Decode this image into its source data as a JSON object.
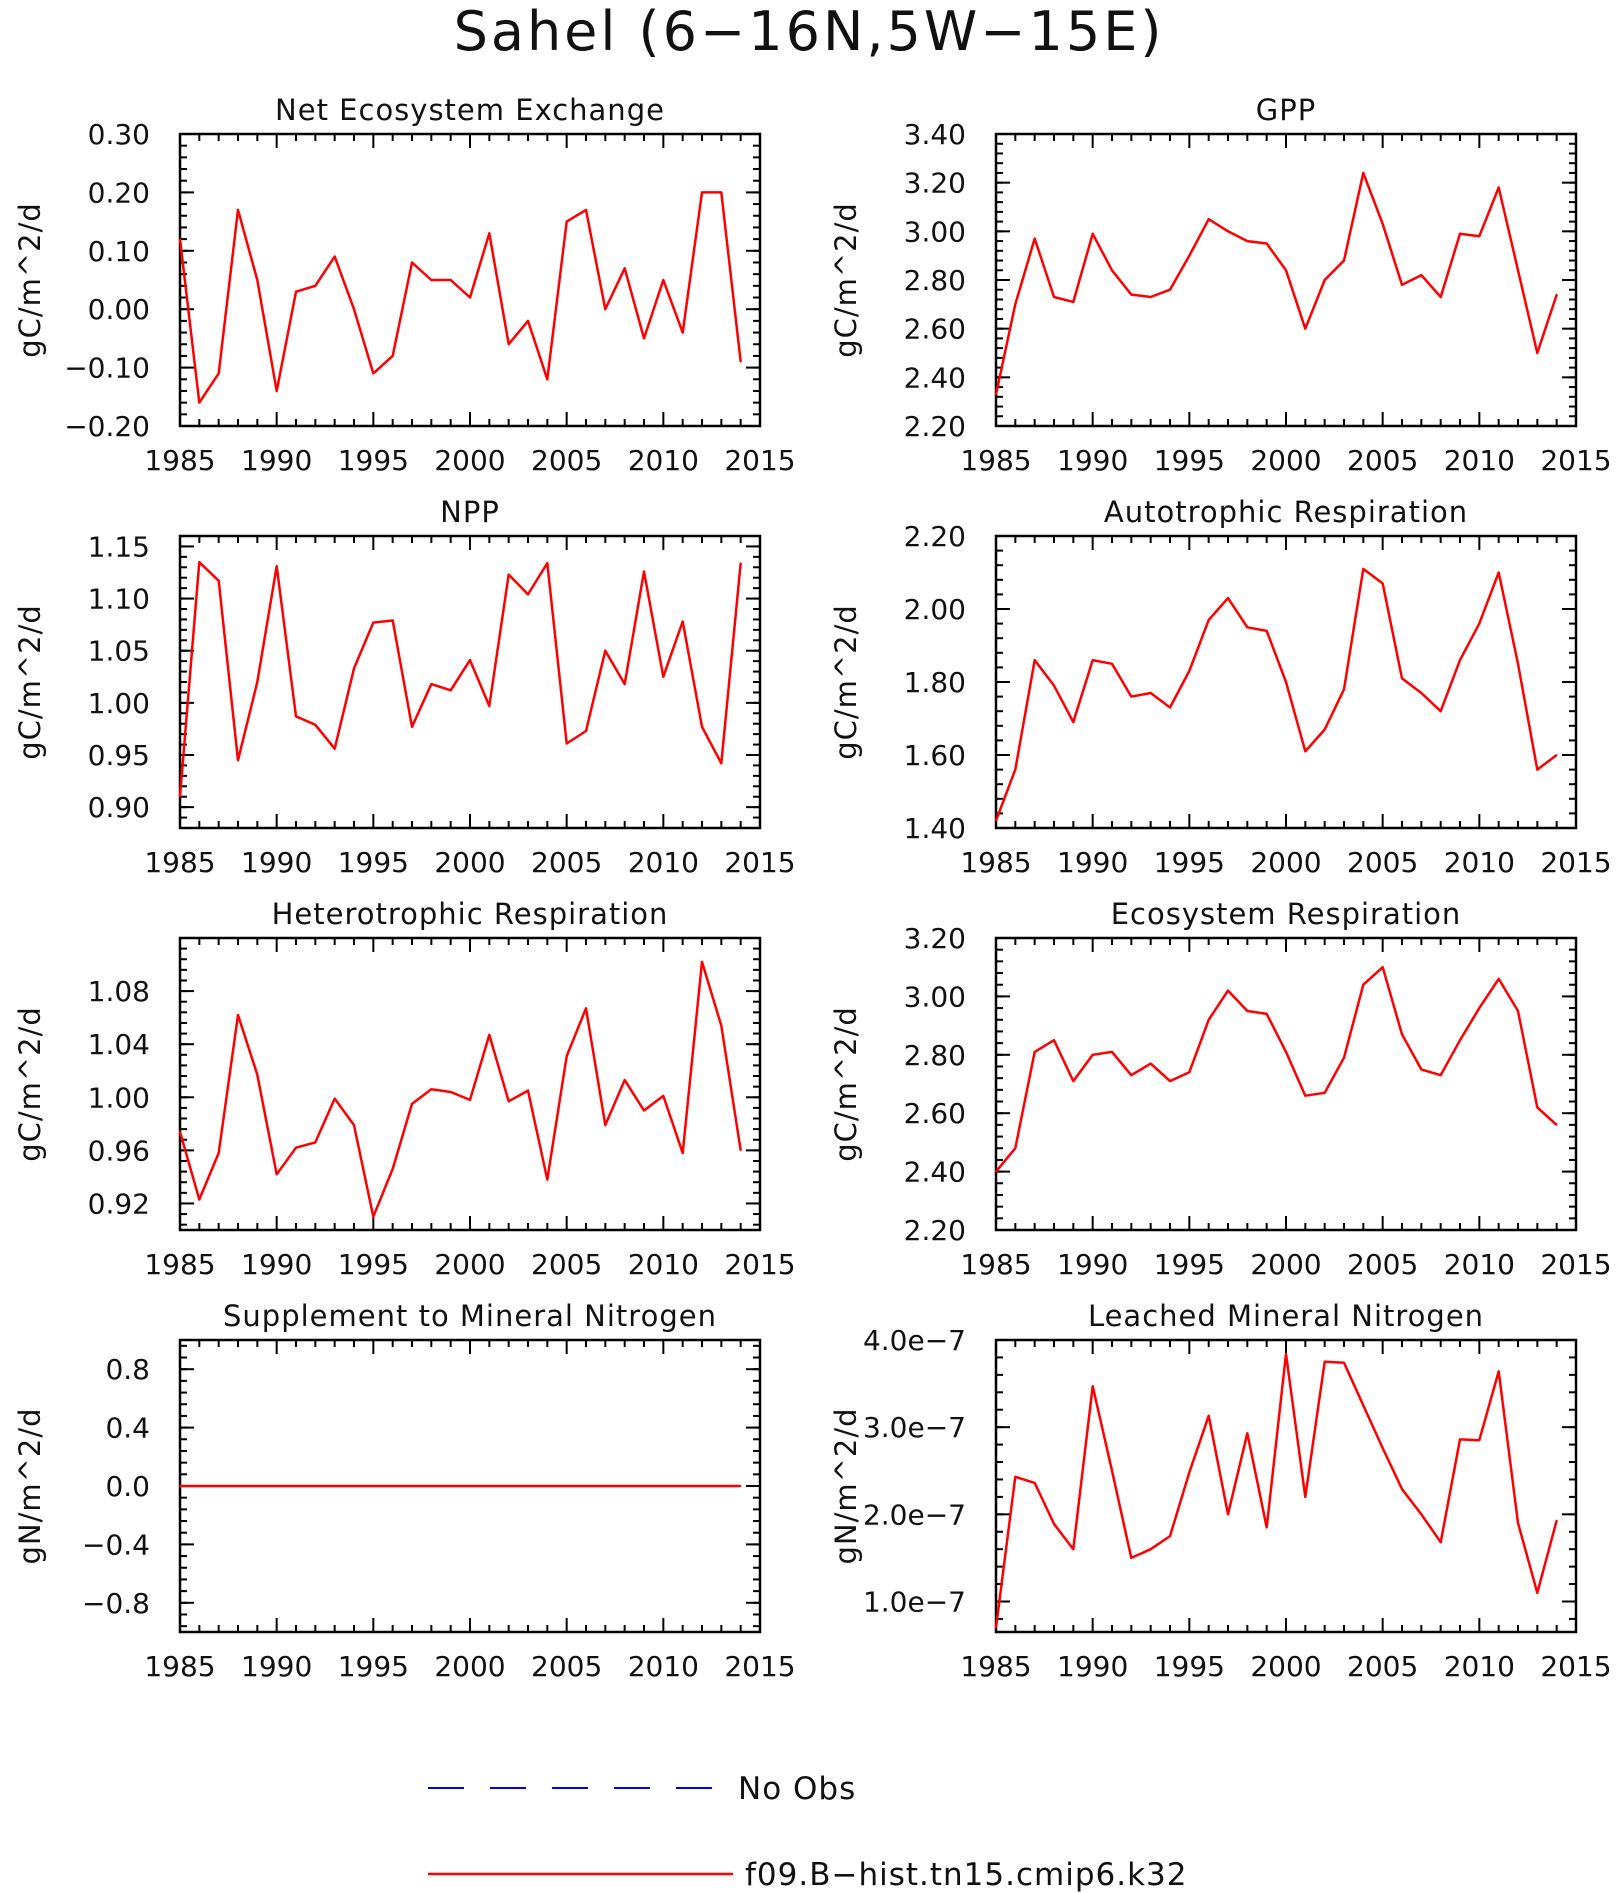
{
  "title": "Sahel (6−16N,5W−15E)",
  "colors": {
    "model": "#ff0000",
    "obs": "#0000ff",
    "axis": "#000000"
  },
  "legend": [
    {
      "label": "No Obs",
      "style": "dashed",
      "color": "#0000ff"
    },
    {
      "label": "f09.B−hist.tn15.cmip6.k32",
      "style": "solid",
      "color": "#ff0000"
    }
  ],
  "chart_data": [
    {
      "type": "line",
      "title": "Net Ecosystem Exchange",
      "ylabel": "gC/m^2/d",
      "xlim": [
        1985,
        2015
      ],
      "ylim": [
        -0.2,
        0.3
      ],
      "xticks": [
        1985,
        1990,
        1995,
        2000,
        2005,
        2010,
        2015
      ],
      "yticks": [
        -0.2,
        -0.1,
        0.0,
        0.1,
        0.2,
        0.3
      ],
      "ytick_labels": [
        "−0.20",
        "−0.10",
        "0.00",
        "0.10",
        "0.20",
        "0.30"
      ],
      "x": [
        1985,
        1986,
        1987,
        1988,
        1989,
        1990,
        1991,
        1992,
        1993,
        1994,
        1995,
        1996,
        1997,
        1998,
        1999,
        2000,
        2001,
        2002,
        2003,
        2004,
        2005,
        2006,
        2007,
        2008,
        2009,
        2010,
        2011,
        2012,
        2013,
        2014
      ],
      "series": [
        {
          "values": [
            0.12,
            -0.16,
            -0.11,
            0.17,
            0.05,
            -0.14,
            0.03,
            0.04,
            0.09,
            0.0,
            -0.11,
            -0.08,
            0.08,
            0.05,
            0.05,
            0.02,
            0.13,
            -0.06,
            -0.02,
            -0.12,
            0.15,
            0.17,
            0.0,
            0.07,
            -0.05,
            0.05,
            -0.04,
            0.2,
            0.2,
            -0.09
          ]
        }
      ]
    },
    {
      "type": "line",
      "title": "GPP",
      "ylabel": "gC/m^2/d",
      "xlim": [
        1985,
        2015
      ],
      "ylim": [
        2.2,
        3.4
      ],
      "xticks": [
        1985,
        1990,
        1995,
        2000,
        2005,
        2010,
        2015
      ],
      "yticks": [
        2.2,
        2.4,
        2.6,
        2.8,
        3.0,
        3.2,
        3.4
      ],
      "ytick_labels": [
        "2.20",
        "2.40",
        "2.60",
        "2.80",
        "3.00",
        "3.20",
        "3.40"
      ],
      "x": [
        1985,
        1986,
        1987,
        1988,
        1989,
        1990,
        1991,
        1992,
        1993,
        1994,
        1995,
        1996,
        1997,
        1998,
        1999,
        2000,
        2001,
        2002,
        2003,
        2004,
        2005,
        2006,
        2007,
        2008,
        2009,
        2010,
        2011,
        2012,
        2013,
        2014
      ],
      "series": [
        {
          "values": [
            2.33,
            2.7,
            2.97,
            2.73,
            2.71,
            2.99,
            2.84,
            2.74,
            2.73,
            2.76,
            2.9,
            3.05,
            3.0,
            2.96,
            2.95,
            2.84,
            2.6,
            2.8,
            2.88,
            3.24,
            3.03,
            2.78,
            2.82,
            2.73,
            2.99,
            2.98,
            3.18,
            2.84,
            2.5,
            2.74
          ]
        }
      ]
    },
    {
      "type": "line",
      "title": "NPP",
      "ylabel": "gC/m^2/d",
      "xlim": [
        1985,
        2015
      ],
      "ylim": [
        0.88,
        1.16
      ],
      "xticks": [
        1985,
        1990,
        1995,
        2000,
        2005,
        2010,
        2015
      ],
      "yticks": [
        0.9,
        0.95,
        1.0,
        1.05,
        1.1,
        1.15
      ],
      "ytick_labels": [
        "0.90",
        "0.95",
        "1.00",
        "1.05",
        "1.10",
        "1.15"
      ],
      "x": [
        1985,
        1986,
        1987,
        1988,
        1989,
        1990,
        1991,
        1992,
        1993,
        1994,
        1995,
        1996,
        1997,
        1998,
        1999,
        2000,
        2001,
        2002,
        2003,
        2004,
        2005,
        2006,
        2007,
        2008,
        2009,
        2010,
        2011,
        2012,
        2013,
        2014
      ],
      "series": [
        {
          "values": [
            0.91,
            1.135,
            1.117,
            0.945,
            1.02,
            1.131,
            0.987,
            0.979,
            0.956,
            1.033,
            1.077,
            1.079,
            0.977,
            1.018,
            1.012,
            1.041,
            0.997,
            1.123,
            1.104,
            1.134,
            0.961,
            0.973,
            1.05,
            1.018,
            1.126,
            1.025,
            1.078,
            0.977,
            0.942,
            1.134
          ]
        }
      ]
    },
    {
      "type": "line",
      "title": "Autotrophic Respiration",
      "ylabel": "gC/m^2/d",
      "xlim": [
        1985,
        2015
      ],
      "ylim": [
        1.4,
        2.2
      ],
      "xticks": [
        1985,
        1990,
        1995,
        2000,
        2005,
        2010,
        2015
      ],
      "yticks": [
        1.4,
        1.6,
        1.8,
        2.0,
        2.2
      ],
      "ytick_labels": [
        "1.40",
        "1.60",
        "1.80",
        "2.00",
        "2.20"
      ],
      "x": [
        1985,
        1986,
        1987,
        1988,
        1989,
        1990,
        1991,
        1992,
        1993,
        1994,
        1995,
        1996,
        1997,
        1998,
        1999,
        2000,
        2001,
        2002,
        2003,
        2004,
        2005,
        2006,
        2007,
        2008,
        2009,
        2010,
        2011,
        2012,
        2013,
        2014
      ],
      "series": [
        {
          "values": [
            1.42,
            1.56,
            1.86,
            1.79,
            1.69,
            1.86,
            1.85,
            1.76,
            1.77,
            1.73,
            1.83,
            1.97,
            2.03,
            1.95,
            1.94,
            1.8,
            1.61,
            1.67,
            1.78,
            2.11,
            2.07,
            1.81,
            1.77,
            1.72,
            1.86,
            1.96,
            2.1,
            1.85,
            1.56,
            1.6
          ]
        }
      ]
    },
    {
      "type": "line",
      "title": "Heterotrophic Respiration",
      "ylabel": "gC/m^2/d",
      "xlim": [
        1985,
        2015
      ],
      "ylim": [
        0.9,
        1.12
      ],
      "xticks": [
        1985,
        1990,
        1995,
        2000,
        2005,
        2010,
        2015
      ],
      "yticks": [
        0.92,
        0.96,
        1.0,
        1.04,
        1.08
      ],
      "ytick_labels": [
        "0.92",
        "0.96",
        "1.00",
        "1.04",
        "1.08"
      ],
      "x": [
        1985,
        1986,
        1987,
        1988,
        1989,
        1990,
        1991,
        1992,
        1993,
        1994,
        1995,
        1996,
        1997,
        1998,
        1999,
        2000,
        2001,
        2002,
        2003,
        2004,
        2005,
        2006,
        2007,
        2008,
        2009,
        2010,
        2011,
        2012,
        2013,
        2014
      ],
      "series": [
        {
          "values": [
            0.974,
            0.923,
            0.958,
            1.062,
            1.017,
            0.942,
            0.962,
            0.966,
            0.999,
            0.979,
            0.91,
            0.946,
            0.995,
            1.006,
            1.004,
            0.998,
            1.047,
            0.997,
            1.005,
            0.938,
            1.031,
            1.067,
            0.979,
            1.013,
            0.99,
            1.001,
            0.958,
            1.102,
            1.054,
            0.96
          ]
        }
      ]
    },
    {
      "type": "line",
      "title": "Ecosystem Respiration",
      "ylabel": "gC/m^2/d",
      "xlim": [
        1985,
        2015
      ],
      "ylim": [
        2.2,
        3.2
      ],
      "xticks": [
        1985,
        1990,
        1995,
        2000,
        2005,
        2010,
        2015
      ],
      "yticks": [
        2.2,
        2.4,
        2.6,
        2.8,
        3.0,
        3.2
      ],
      "ytick_labels": [
        "2.20",
        "2.40",
        "2.60",
        "2.80",
        "3.00",
        "3.20"
      ],
      "x": [
        1985,
        1986,
        1987,
        1988,
        1989,
        1990,
        1991,
        1992,
        1993,
        1994,
        1995,
        1996,
        1997,
        1998,
        1999,
        2000,
        2001,
        2002,
        2003,
        2004,
        2005,
        2006,
        2007,
        2008,
        2009,
        2010,
        2011,
        2012,
        2013,
        2014
      ],
      "series": [
        {
          "values": [
            2.4,
            2.48,
            2.81,
            2.85,
            2.71,
            2.8,
            2.81,
            2.73,
            2.77,
            2.71,
            2.74,
            2.92,
            3.02,
            2.95,
            2.94,
            2.81,
            2.66,
            2.67,
            2.79,
            3.04,
            3.1,
            2.87,
            2.75,
            2.73,
            2.85,
            2.96,
            3.06,
            2.95,
            2.62,
            2.56
          ]
        }
      ]
    },
    {
      "type": "line",
      "title": "Supplement to Mineral Nitrogen",
      "ylabel": "gN/m^2/d",
      "xlim": [
        1985,
        2015
      ],
      "ylim": [
        -1.0,
        1.0
      ],
      "xticks": [
        1985,
        1990,
        1995,
        2000,
        2005,
        2010,
        2015
      ],
      "yticks": [
        -0.8,
        -0.4,
        0.0,
        0.4,
        0.8
      ],
      "ytick_labels": [
        "−0.8",
        "−0.4",
        "0.0",
        "0.4",
        "0.8"
      ],
      "x": [
        1985,
        1986,
        1987,
        1988,
        1989,
        1990,
        1991,
        1992,
        1993,
        1994,
        1995,
        1996,
        1997,
        1998,
        1999,
        2000,
        2001,
        2002,
        2003,
        2004,
        2005,
        2006,
        2007,
        2008,
        2009,
        2010,
        2011,
        2012,
        2013,
        2014
      ],
      "series": [
        {
          "values": [
            0,
            0,
            0,
            0,
            0,
            0,
            0,
            0,
            0,
            0,
            0,
            0,
            0,
            0,
            0,
            0,
            0,
            0,
            0,
            0,
            0,
            0,
            0,
            0,
            0,
            0,
            0,
            0,
            0,
            0
          ]
        }
      ]
    },
    {
      "type": "line",
      "title": "Leached Mineral Nitrogen",
      "ylabel": "gN/m^2/d",
      "xlim": [
        1985,
        2015
      ],
      "ylim": [
        6.5e-08,
        4e-07
      ],
      "xticks": [
        1985,
        1990,
        1995,
        2000,
        2005,
        2010,
        2015
      ],
      "yticks": [
        1e-07,
        2e-07,
        3e-07,
        4e-07
      ],
      "ytick_labels": [
        "1.0e−7",
        "2.0e−7",
        "3.0e−7",
        "4.0e−7"
      ],
      "x": [
        1985,
        1986,
        1987,
        1988,
        1989,
        1990,
        1991,
        1992,
        1993,
        1994,
        1995,
        1996,
        1997,
        1998,
        1999,
        2000,
        2001,
        2002,
        2003,
        2004,
        2005,
        2006,
        2007,
        2008,
        2009,
        2010,
        2011,
        2012,
        2013,
        2014
      ],
      "series": [
        {
          "values": [
            7e-08,
            2.43e-07,
            2.36e-07,
            1.89e-07,
            1.6e-07,
            3.47e-07,
            2.5e-07,
            1.5e-07,
            1.6e-07,
            1.75e-07,
            2.48e-07,
            3.13e-07,
            2e-07,
            2.93e-07,
            1.85e-07,
            3.84e-07,
            2.2e-07,
            3.75e-07,
            3.74e-07,
            3.25e-07,
            2.76e-07,
            2.29e-07,
            2e-07,
            1.68e-07,
            2.86e-07,
            2.85e-07,
            3.64e-07,
            1.9e-07,
            1.1e-07,
            1.93e-07
          ]
        }
      ]
    }
  ]
}
